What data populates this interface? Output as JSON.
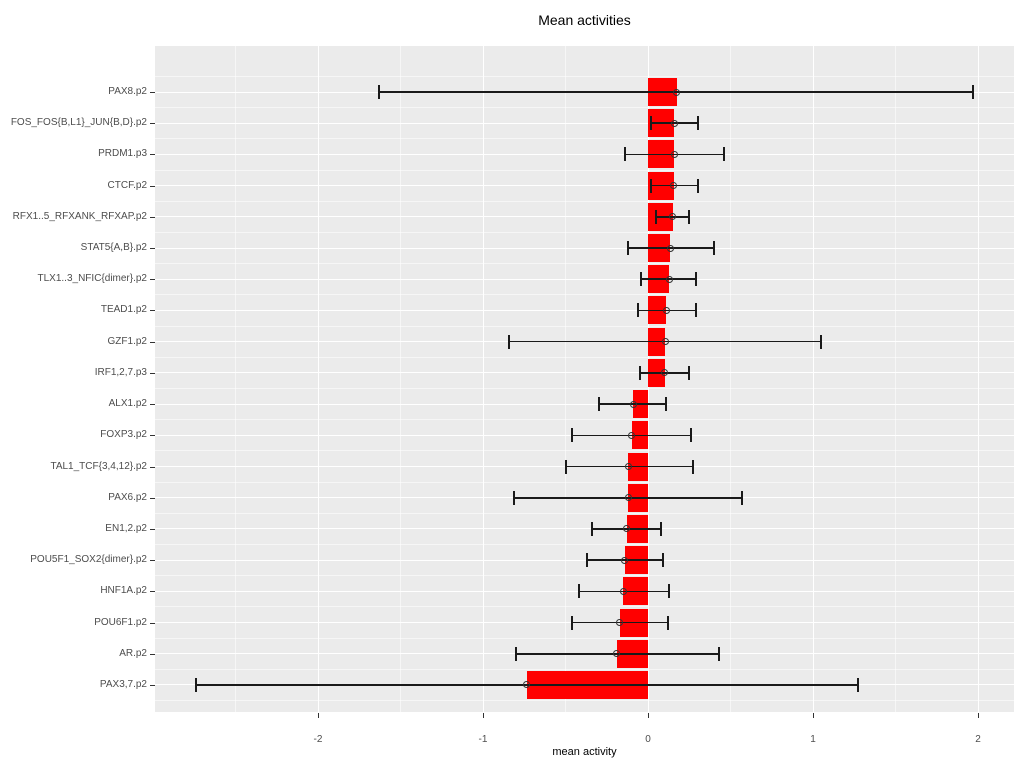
{
  "title": "Mean activities",
  "colors": {
    "bar_fill": "#FF0000",
    "panel_background": "#EBEBEB",
    "grid_major": "#FFFFFF",
    "grid_minor_rgba": "rgba(255,255,255,0.55)",
    "error_bar": "#1A1A1A",
    "point_outline": "#333333",
    "axis_text": "#4D4D4D",
    "tick_mark": "#333333",
    "title_text": "#000000"
  },
  "x_axis": {
    "label": "mean activity",
    "tick_labels": [
      "-2",
      "-1",
      "0",
      "1",
      "2"
    ]
  },
  "chart_data": {
    "type": "bar",
    "orientation": "horizontal",
    "title": "Mean activities",
    "xlabel": "mean activity",
    "ylabel": "",
    "xlim": [
      -2.99,
      2.22
    ],
    "x_ticks": [
      -2,
      -1,
      0,
      1,
      2
    ],
    "x_minor_ticks": [
      -2.5,
      -1.5,
      -0.5,
      0.5,
      1.5
    ],
    "grid": "on",
    "legend": "none",
    "categories": [
      "PAX8.p2",
      "FOS_FOS{B,L1}_JUN{B,D}.p2",
      "PRDM1.p3",
      "CTCF.p2",
      "RFX1..5_RFXANK_RFXAP.p2",
      "STAT5{A,B}.p2",
      "TLX1..3_NFIC{dimer}.p2",
      "TEAD1.p2",
      "GZF1.p2",
      "IRF1,2,7.p3",
      "ALX1.p2",
      "FOXP3.p2",
      "TAL1_TCF{3,4,12}.p2",
      "PAX6.p2",
      "EN1,2.p2",
      "POU5F1_SOX2{dimer}.p2",
      "HNF1A.p2",
      "POU6F1.p2",
      "AR.p2",
      "PAX3,7.p2"
    ],
    "values": [
      0.175,
      0.16,
      0.16,
      0.155,
      0.15,
      0.135,
      0.13,
      0.11,
      0.105,
      0.1,
      -0.09,
      -0.1,
      -0.12,
      -0.12,
      -0.13,
      -0.14,
      -0.15,
      -0.17,
      -0.19,
      -0.735
    ],
    "error_low": [
      -1.63,
      0.02,
      -0.14,
      0.02,
      0.05,
      -0.12,
      -0.04,
      -0.06,
      -0.84,
      -0.05,
      -0.3,
      -0.46,
      -0.5,
      -0.81,
      -0.34,
      -0.37,
      -0.42,
      -0.46,
      -0.8,
      -2.74
    ],
    "error_high": [
      1.97,
      0.3,
      0.46,
      0.3,
      0.25,
      0.4,
      0.29,
      0.29,
      1.05,
      0.25,
      0.11,
      0.26,
      0.27,
      0.57,
      0.08,
      0.09,
      0.13,
      0.12,
      0.43,
      1.27
    ]
  }
}
